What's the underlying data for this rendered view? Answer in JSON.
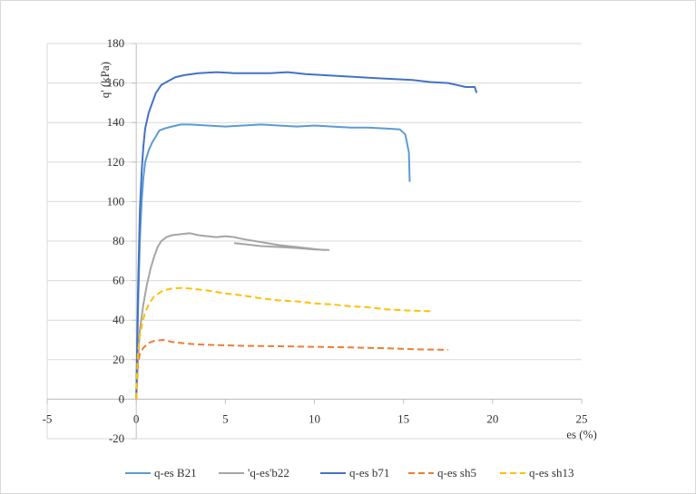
{
  "chart_data": {
    "type": "line",
    "title": "",
    "xlabel": "es (%)",
    "ylabel": "q' (kPa)",
    "xlim": [
      -5,
      25
    ],
    "ylim": [
      -20,
      180
    ],
    "xticks": [
      -5,
      0,
      5,
      10,
      15,
      20,
      25
    ],
    "yticks": [
      -20,
      0,
      20,
      40,
      60,
      80,
      100,
      120,
      140,
      160,
      180
    ],
    "xtick_labels": [
      "-5",
      "0",
      "5",
      "10",
      "15",
      "20",
      "25"
    ],
    "ytick_labels": [
      "-20",
      "0",
      "20",
      "40",
      "60",
      "80",
      "100",
      "120",
      "140",
      "160",
      "180"
    ],
    "grid": "horizontal",
    "legend_position": "bottom",
    "series": [
      {
        "name": "q-es B21",
        "color": "#5b9bd5",
        "dash": "solid",
        "points": [
          [
            0,
            0
          ],
          [
            0.1,
            45
          ],
          [
            0.2,
            80
          ],
          [
            0.3,
            100
          ],
          [
            0.4,
            112
          ],
          [
            0.5,
            120
          ],
          [
            0.7,
            126
          ],
          [
            0.9,
            130
          ],
          [
            1.1,
            133
          ],
          [
            1.3,
            136
          ],
          [
            1.6,
            137
          ],
          [
            2,
            138
          ],
          [
            2.5,
            139
          ],
          [
            3,
            139
          ],
          [
            4,
            138.5
          ],
          [
            5,
            138
          ],
          [
            6,
            138.5
          ],
          [
            7,
            139
          ],
          [
            8,
            138.5
          ],
          [
            9,
            138
          ],
          [
            10,
            138.5
          ],
          [
            11,
            138
          ],
          [
            12,
            137.5
          ],
          [
            13,
            137.5
          ],
          [
            14,
            137
          ],
          [
            14.8,
            136.5
          ],
          [
            15.1,
            134
          ],
          [
            15.3,
            125
          ],
          [
            15.35,
            110
          ]
        ]
      },
      {
        "name": "'q-es'b22",
        "color": "#a5a5a5",
        "dash": "solid",
        "points": [
          [
            0,
            0
          ],
          [
            0.1,
            20
          ],
          [
            0.2,
            35
          ],
          [
            0.4,
            48
          ],
          [
            0.6,
            58
          ],
          [
            0.8,
            66
          ],
          [
            1,
            72
          ],
          [
            1.2,
            77
          ],
          [
            1.4,
            80
          ],
          [
            1.7,
            82
          ],
          [
            2,
            83
          ],
          [
            2.5,
            83.5
          ],
          [
            3,
            84
          ],
          [
            3.5,
            83
          ],
          [
            4,
            82.5
          ],
          [
            4.5,
            82
          ],
          [
            5,
            82.5
          ],
          [
            5.5,
            82
          ],
          [
            6,
            81
          ],
          [
            7,
            79.5
          ],
          [
            8,
            78
          ],
          [
            9,
            77
          ],
          [
            10,
            76
          ],
          [
            10.5,
            75.5
          ],
          [
            10.8,
            75.5
          ],
          [
            10,
            75.8
          ],
          [
            9,
            76.5
          ],
          [
            8,
            77
          ],
          [
            7,
            77.5
          ],
          [
            6,
            78.5
          ],
          [
            5.5,
            79
          ]
        ]
      },
      {
        "name": "q-es b71",
        "color": "#4472c4",
        "dash": "solid",
        "points": [
          [
            0,
            0
          ],
          [
            0.1,
            55
          ],
          [
            0.2,
            95
          ],
          [
            0.3,
            115
          ],
          [
            0.4,
            128
          ],
          [
            0.5,
            137
          ],
          [
            0.7,
            145
          ],
          [
            0.9,
            150
          ],
          [
            1.1,
            155
          ],
          [
            1.4,
            159
          ],
          [
            1.8,
            161
          ],
          [
            2.2,
            163
          ],
          [
            2.7,
            164
          ],
          [
            3.5,
            165
          ],
          [
            4.5,
            165.5
          ],
          [
            5.5,
            165
          ],
          [
            6.5,
            165
          ],
          [
            7.5,
            165
          ],
          [
            8.5,
            165.5
          ],
          [
            9.5,
            164.5
          ],
          [
            10.5,
            164
          ],
          [
            11.5,
            163.5
          ],
          [
            12.5,
            163
          ],
          [
            13.5,
            162.5
          ],
          [
            14.5,
            162
          ],
          [
            15.5,
            161.5
          ],
          [
            16.5,
            160.5
          ],
          [
            17.5,
            160
          ],
          [
            18.5,
            158
          ],
          [
            19,
            158
          ],
          [
            19.1,
            155
          ]
        ]
      },
      {
        "name": "q-es sh5",
        "color": "#ed7d31",
        "dash": "dashed",
        "points": [
          [
            0,
            0
          ],
          [
            0.05,
            10
          ],
          [
            0.1,
            18
          ],
          [
            0.2,
            23
          ],
          [
            0.4,
            26
          ],
          [
            0.7,
            28.5
          ],
          [
            1,
            29.5
          ],
          [
            1.5,
            30
          ],
          [
            2,
            29
          ],
          [
            3,
            28
          ],
          [
            4,
            27.5
          ],
          [
            6,
            27
          ],
          [
            8,
            26.8
          ],
          [
            10,
            26.5
          ],
          [
            12,
            26.2
          ],
          [
            14,
            25.8
          ],
          [
            16,
            25.2
          ],
          [
            17.5,
            25
          ]
        ]
      },
      {
        "name": "q-es sh13",
        "color": "#ffc000",
        "dash": "dashed",
        "points": [
          [
            0,
            0
          ],
          [
            0.05,
            14
          ],
          [
            0.1,
            24
          ],
          [
            0.2,
            32
          ],
          [
            0.35,
            39
          ],
          [
            0.5,
            44
          ],
          [
            0.7,
            48
          ],
          [
            1,
            52
          ],
          [
            1.5,
            55
          ],
          [
            2,
            56
          ],
          [
            2.5,
            56.3
          ],
          [
            3,
            56
          ],
          [
            4,
            55
          ],
          [
            5,
            53.5
          ],
          [
            6,
            52.5
          ],
          [
            7,
            51
          ],
          [
            8,
            50
          ],
          [
            9,
            49.5
          ],
          [
            10,
            48.5
          ],
          [
            11,
            48
          ],
          [
            12,
            47
          ],
          [
            13,
            46.5
          ],
          [
            14,
            45.5
          ],
          [
            15,
            45
          ],
          [
            16.5,
            44.5
          ]
        ]
      }
    ]
  }
}
